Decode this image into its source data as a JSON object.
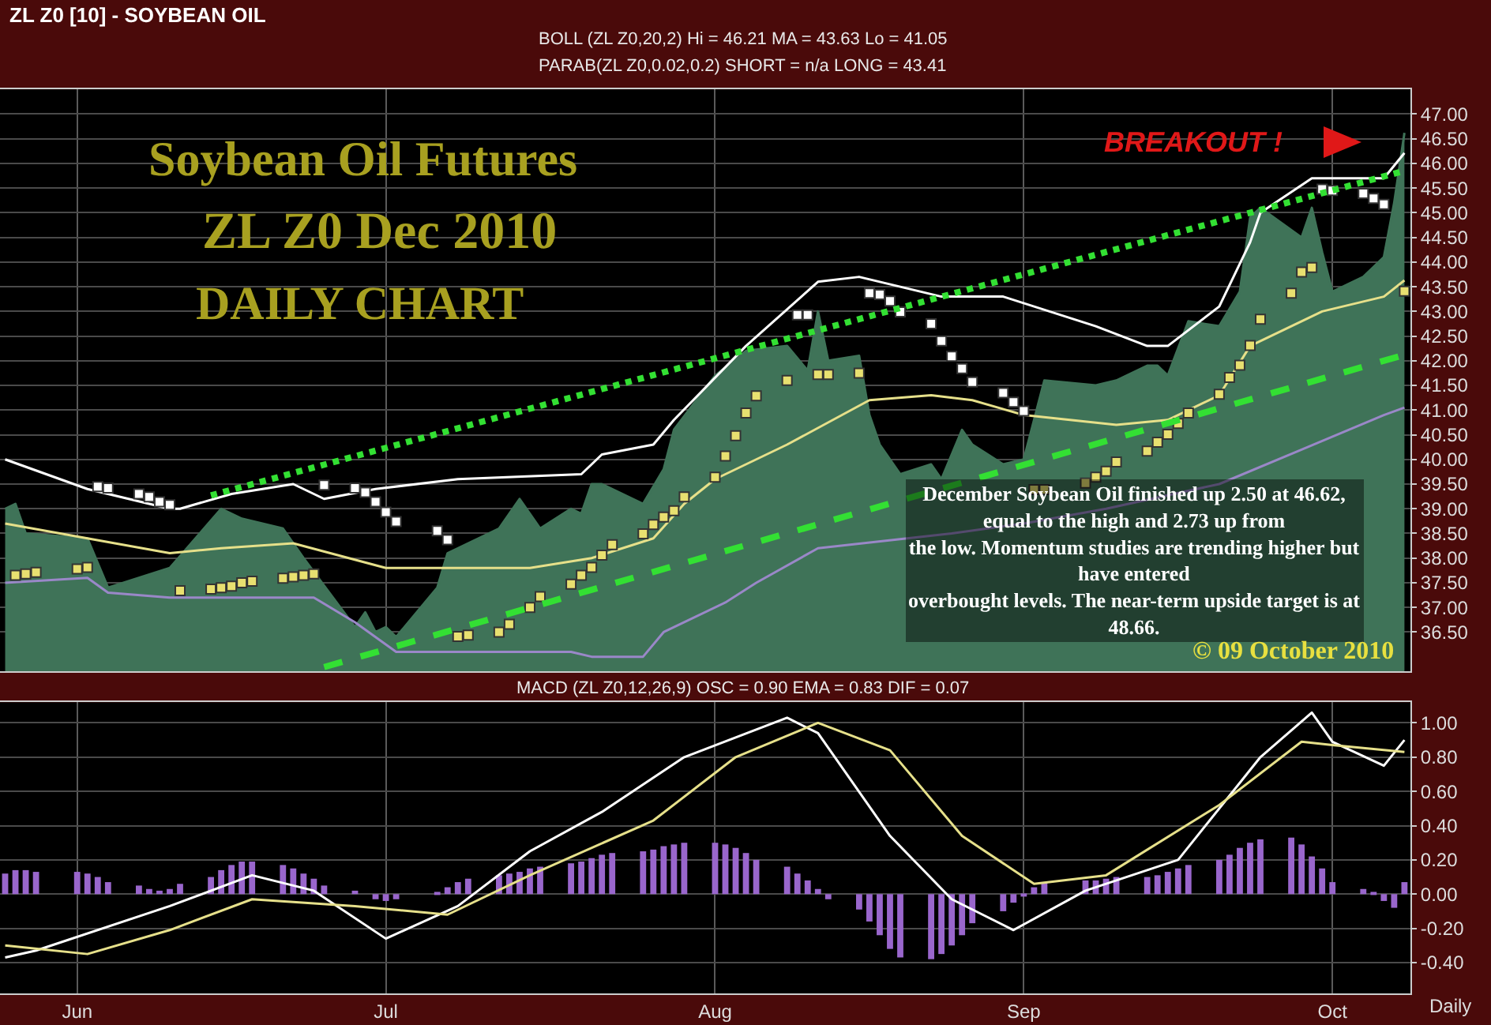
{
  "chart_data": [
    {
      "type": "area",
      "title": "ZL Z0 [10] - SOYBEAN OIL",
      "annotations": [
        "BOLL (ZL Z0,20,2) Hi = 46.21 MA = 43.63 Lo = 41.05",
        "PARAB(ZL Z0,0.02,0.2) SHORT = n/a LONG = 43.41",
        "Soybean Oil Futures",
        "ZL Z0 Dec 2010",
        "DAILY CHART",
        "BREAKOUT !",
        "December Soybean Oil finished up 2.50 at 46.62,\nequal to the high and 2.73 up from\nthe low. Momentum studies are trending higher but\nhave entered\noverbought levels. The near-term upside target is at\n48.66.",
        "© 09 October 2010"
      ],
      "series": [
        {
          "color": "#3f7358",
          "x": [
            "--05-25",
            "--05-26",
            "--05-27",
            "--06-02",
            "--06-04",
            "--06-07",
            "--06-10",
            "--06-15",
            "--06-17",
            "--06-21",
            "--06-23",
            "--06-28",
            "--06-29",
            "--06-30",
            "--07-01",
            "--07-02",
            "--07-06",
            "--07-07",
            "--07-12",
            "--07-14",
            "--07-16",
            "--07-19",
            "--07-20",
            "--07-21",
            "--07-22",
            "--07-26",
            "--07-28",
            "--07-29",
            "--08-02",
            "--08-05",
            "--08-09",
            "--08-11",
            "--08-12",
            "--08-13",
            "--08-16",
            "--08-17",
            "--08-18",
            "--08-20",
            "--08-23",
            "--08-24",
            "--08-26",
            "--08-27",
            "--08-30",
            "--09-01",
            "--09-03",
            "--09-08",
            "--09-10",
            "--09-13",
            "--09-14",
            "--09-15",
            "--09-17",
            "--09-20",
            "--09-22",
            "--09-23",
            "--09-24",
            "--09-28",
            "--09-29",
            "--09-30",
            "--10-01",
            "--10-04",
            "--10-06",
            "--10-07",
            "--10-08"
          ],
          "values": [
            39.0,
            39.1,
            38.5,
            38.4,
            37.4,
            37.6,
            37.8,
            39.0,
            38.8,
            38.6,
            38.0,
            36.6,
            36.9,
            36.5,
            36.6,
            36.4,
            37.4,
            38.1,
            38.6,
            39.2,
            38.6,
            39.0,
            38.9,
            39.5,
            39.5,
            39.1,
            39.8,
            40.6,
            41.7,
            42.2,
            42.3,
            41.8,
            43.0,
            42.0,
            42.1,
            40.9,
            40.3,
            39.7,
            39.9,
            39.6,
            40.6,
            40.3,
            39.9,
            40.0,
            41.6,
            41.5,
            41.6,
            41.9,
            41.9,
            41.7,
            42.8,
            42.7,
            43.4,
            44.9,
            45.1,
            44.5,
            45.1,
            44.2,
            43.4,
            43.7,
            44.1,
            45.2,
            46.62
          ]
        },
        {
          "type": "line",
          "color": "#ffffff",
          "x": [
            "--05-25",
            "--06-02",
            "--06-10",
            "--06-11",
            "--06-16",
            "--06-22",
            "--06-25",
            "--06-30",
            "--07-08",
            "--07-20",
            "--07-22",
            "--07-27",
            "--07-29",
            "--08-05",
            "--08-12",
            "--08-16",
            "--08-24",
            "--08-30",
            "--09-08",
            "--09-13",
            "--09-15",
            "--09-20",
            "--09-23",
            "--09-24",
            "--09-29",
            "--10-06",
            "--10-08"
          ],
          "values": [
            40.0,
            39.4,
            39.0,
            39.0,
            39.3,
            39.5,
            39.2,
            39.4,
            39.6,
            39.7,
            40.1,
            40.3,
            40.8,
            42.3,
            43.6,
            43.7,
            43.3,
            43.3,
            42.7,
            42.3,
            42.3,
            43.1,
            44.4,
            45.0,
            45.7,
            45.7,
            46.21
          ]
        },
        {
          "type": "line",
          "color": "#e6e08a",
          "x": [
            "--05-25",
            "--06-02",
            "--06-10",
            "--06-15",
            "--06-22",
            "--07-01",
            "--07-15",
            "--07-21",
            "--07-27",
            "--07-30",
            "--08-02",
            "--08-09",
            "--08-17",
            "--08-23",
            "--08-27",
            "--09-01",
            "--09-10",
            "--09-15",
            "--09-20",
            "--09-23",
            "--09-30",
            "--10-06",
            "--10-08"
          ],
          "values": [
            38.7,
            38.4,
            38.1,
            38.2,
            38.3,
            37.8,
            37.8,
            38.0,
            38.4,
            39.1,
            39.6,
            40.3,
            41.2,
            41.3,
            41.2,
            40.9,
            40.7,
            40.8,
            41.3,
            42.3,
            43.0,
            43.3,
            43.63
          ]
        },
        {
          "type": "line",
          "color": "#9a88c8",
          "x": [
            "--05-25",
            "--06-02",
            "--06-04",
            "--06-10",
            "--06-24",
            "--06-28",
            "--06-30",
            "--07-02",
            "--07-19",
            "--07-21",
            "--07-26",
            "--07-28",
            "--08-03",
            "--08-06",
            "--08-12",
            "--08-25",
            "--09-01",
            "--09-09",
            "--09-20",
            "--09-28",
            "--10-06",
            "--10-08"
          ],
          "values": [
            37.5,
            37.6,
            37.3,
            37.2,
            37.2,
            36.7,
            36.4,
            36.1,
            36.1,
            36.0,
            36.0,
            36.5,
            37.1,
            37.5,
            38.2,
            38.5,
            38.7,
            39.0,
            39.5,
            40.2,
            40.9,
            41.05
          ]
        },
        {
          "type": "scatter",
          "marker": "square",
          "x": [
            "--05-26",
            "--05-27",
            "--05-28",
            "--06-01",
            "--06-02",
            "--06-03",
            "--06-04",
            "--06-07",
            "--06-08",
            "--06-09",
            "--06-10",
            "--06-11",
            "--06-14",
            "--06-15",
            "--06-16",
            "--06-17",
            "--06-18",
            "--06-21",
            "--06-22",
            "--06-23",
            "--06-24",
            "--06-25",
            "--06-28",
            "--06-29",
            "--06-30",
            "--07-01",
            "--07-02",
            "--07-06",
            "--07-07",
            "--07-08",
            "--07-09",
            "--07-12",
            "--07-13",
            "--07-15",
            "--07-16",
            "--07-19",
            "--07-20",
            "--07-21",
            "--07-22",
            "--07-23",
            "--07-26",
            "--07-27",
            "--07-28",
            "--07-29",
            "--07-30",
            "--08-02",
            "--08-03",
            "--08-04",
            "--08-05",
            "--08-06",
            "--08-09",
            "--08-10",
            "--08-11",
            "--08-12",
            "--08-13",
            "--08-16",
            "--08-17",
            "--08-18",
            "--08-19",
            "--08-20",
            "--08-23",
            "--08-24",
            "--08-25",
            "--08-26",
            "--08-27",
            "--08-30",
            "--08-31",
            "--09-01",
            "--09-02",
            "--09-03",
            "--09-07",
            "--09-08",
            "--09-09",
            "--09-10",
            "--09-13",
            "--09-14",
            "--09-15",
            "--09-16",
            "--09-17",
            "--09-20",
            "--09-21",
            "--09-22",
            "--09-23",
            "--09-24",
            "--09-27",
            "--09-28",
            "--09-29",
            "--09-30",
            "--10-01",
            "--10-04",
            "--10-05",
            "--10-06",
            "--10-08"
          ],
          "values": [
            37.65,
            37.68,
            37.71,
            37.78,
            37.81,
            39.45,
            39.42,
            39.3,
            39.24,
            39.14,
            39.08,
            37.34,
            37.37,
            37.4,
            37.43,
            37.5,
            37.53,
            37.59,
            37.62,
            37.65,
            37.68,
            39.48,
            39.42,
            39.33,
            39.14,
            38.93,
            38.74,
            38.55,
            38.37,
            36.41,
            36.44,
            36.5,
            36.66,
            37.0,
            37.22,
            37.47,
            37.65,
            37.81,
            38.06,
            38.27,
            38.49,
            38.68,
            38.83,
            38.96,
            39.24,
            39.64,
            40.07,
            40.48,
            40.94,
            41.29,
            41.6,
            42.93,
            42.93,
            41.72,
            41.72,
            41.75,
            43.37,
            43.34,
            43.21,
            42.99,
            42.75,
            42.4,
            42.09,
            41.84,
            41.57,
            41.35,
            41.16,
            40.98,
            39.39,
            39.39,
            39.52,
            39.64,
            39.76,
            39.95,
            40.17,
            40.35,
            40.51,
            40.73,
            40.94,
            41.32,
            41.66,
            41.91,
            42.31,
            42.84,
            43.37,
            43.8,
            43.89,
            45.48,
            45.45,
            45.39,
            45.29,
            45.17,
            43.41
          ],
          "colors": [
            "#e8e070",
            "#e8e070",
            "#e8e070",
            "#e8e070",
            "#e8e070",
            "#ffffff",
            "#ffffff",
            "#ffffff",
            "#ffffff",
            "#ffffff",
            "#ffffff",
            "#e8e070",
            "#e8e070",
            "#e8e070",
            "#e8e070",
            "#e8e070",
            "#e8e070",
            "#e8e070",
            "#e8e070",
            "#e8e070",
            "#e8e070",
            "#ffffff",
            "#ffffff",
            "#ffffff",
            "#ffffff",
            "#ffffff",
            "#ffffff",
            "#ffffff",
            "#ffffff",
            "#e8e070",
            "#e8e070",
            "#e8e070",
            "#e8e070",
            "#e8e070",
            "#e8e070",
            "#e8e070",
            "#e8e070",
            "#e8e070",
            "#e8e070",
            "#e8e070",
            "#e8e070",
            "#e8e070",
            "#e8e070",
            "#e8e070",
            "#e8e070",
            "#e8e070",
            "#e8e070",
            "#e8e070",
            "#e8e070",
            "#e8e070",
            "#e8e070",
            "#ffffff",
            "#ffffff",
            "#e8e070",
            "#e8e070",
            "#e8e070",
            "#ffffff",
            "#ffffff",
            "#ffffff",
            "#ffffff",
            "#ffffff",
            "#ffffff",
            "#ffffff",
            "#ffffff",
            "#ffffff",
            "#ffffff",
            "#ffffff",
            "#ffffff",
            "#e8e070",
            "#e8e070",
            "#e8e070",
            "#e8e070",
            "#e8e070",
            "#e8e070",
            "#e8e070",
            "#e8e070",
            "#e8e070",
            "#e8e070",
            "#e8e070",
            "#e8e070",
            "#e8e070",
            "#e8e070",
            "#e8e070",
            "#e8e070",
            "#e8e070",
            "#e8e070",
            "#e8e070",
            "#ffffff",
            "#ffffff",
            "#ffffff",
            "#ffffff",
            "#ffffff",
            "#e8e070"
          ]
        },
        {
          "type": "line",
          "color": "#33e033",
          "line_style": "dotted",
          "x": [
            "--06-14",
            "--10-08"
          ],
          "values": [
            39.27,
            45.85
          ]
        },
        {
          "type": "line",
          "color": "#33e033",
          "line_style": "dashed",
          "x": [
            "--06-25",
            "--10-08"
          ],
          "values": [
            35.79,
            42.12
          ]
        }
      ],
      "xlim": [
        "--05-24T12:00",
        "--10-08T14:00"
      ],
      "xticks": [
        {
          "value": "--06-01",
          "label": "Jun"
        },
        {
          "value": "--07-01",
          "label": "Jul"
        },
        {
          "value": "--08-02",
          "label": "Aug"
        },
        {
          "value": "--09-01",
          "label": "Sep"
        },
        {
          "value": "--10-01",
          "label": "Oct"
        }
      ],
      "ylim": [
        35.7,
        47.5
      ],
      "yticks": [
        {
          "value": 36.5,
          "label": "36.50"
        },
        {
          "value": 37,
          "label": "37.00"
        },
        {
          "value": 37.5,
          "label": "37.50"
        },
        {
          "value": 38,
          "label": "38.00"
        },
        {
          "value": 38.5,
          "label": "38.50"
        },
        {
          "value": 39,
          "label": "39.00"
        },
        {
          "value": 39.5,
          "label": "39.50"
        },
        {
          "value": 40,
          "label": "40.00"
        },
        {
          "value": 40.5,
          "label": "40.50"
        },
        {
          "value": 41,
          "label": "41.00"
        },
        {
          "value": 41.5,
          "label": "41.50"
        },
        {
          "value": 42,
          "label": "42.00"
        },
        {
          "value": 42.5,
          "label": "42.50"
        },
        {
          "value": 43,
          "label": "43.00"
        },
        {
          "value": 43.5,
          "label": "43.50"
        },
        {
          "value": 44,
          "label": "44.00"
        },
        {
          "value": 44.5,
          "label": "44.50"
        },
        {
          "value": 45,
          "label": "45.00"
        },
        {
          "value": 45.5,
          "label": "45.50"
        },
        {
          "value": 46,
          "label": "46.00"
        },
        {
          "value": 46.5,
          "label": "46.50"
        },
        {
          "value": 47,
          "label": "47.00"
        }
      ],
      "grid": true,
      "tick_labels": "y"
    },
    {
      "type": "bar",
      "annotations": [
        "MACD (ZL Z0,12,26,9) OSC = 0.90 EMA = 0.83 DIF = 0.07",
        "Daily"
      ],
      "series": [
        {
          "color": "#9966cc",
          "x": [
            "--05-25",
            "--05-26",
            "--05-27",
            "--05-28",
            "--06-01",
            "--06-02",
            "--06-03",
            "--06-04",
            "--06-07",
            "--06-08",
            "--06-09",
            "--06-10",
            "--06-11",
            "--06-14",
            "--06-15",
            "--06-16",
            "--06-17",
            "--06-18",
            "--06-21",
            "--06-22",
            "--06-23",
            "--06-24",
            "--06-25",
            "--06-28",
            "--06-29",
            "--06-30",
            "--07-01",
            "--07-02",
            "--07-06",
            "--07-07",
            "--07-08",
            "--07-09",
            "--07-12",
            "--07-13",
            "--07-14",
            "--07-15",
            "--07-16",
            "--07-19",
            "--07-20",
            "--07-21",
            "--07-22",
            "--07-23",
            "--07-26",
            "--07-27",
            "--07-28",
            "--07-29",
            "--07-30",
            "--08-02",
            "--08-03",
            "--08-04",
            "--08-05",
            "--08-06",
            "--08-09",
            "--08-10",
            "--08-11",
            "--08-12",
            "--08-13",
            "--08-16",
            "--08-17",
            "--08-18",
            "--08-19",
            "--08-20",
            "--08-23",
            "--08-24",
            "--08-25",
            "--08-26",
            "--08-27",
            "--08-30",
            "--08-31",
            "--09-01",
            "--09-02",
            "--09-03",
            "--09-07",
            "--09-08",
            "--09-09",
            "--09-10",
            "--09-13",
            "--09-14",
            "--09-15",
            "--09-16",
            "--09-17",
            "--09-20",
            "--09-21",
            "--09-22",
            "--09-23",
            "--09-24",
            "--09-27",
            "--09-28",
            "--09-29",
            "--09-30",
            "--10-01",
            "--10-04",
            "--10-05",
            "--10-06",
            "--10-07",
            "--10-08"
          ],
          "values": [
            0.12,
            0.14,
            0.14,
            0.13,
            0.13,
            0.12,
            0.1,
            0.07,
            0.05,
            0.03,
            0.02,
            0.03,
            0.06,
            0.1,
            0.14,
            0.17,
            0.19,
            0.19,
            0.17,
            0.15,
            0.12,
            0.09,
            0.05,
            0.02,
            0.0,
            -0.03,
            -0.04,
            -0.03,
            0.01,
            0.04,
            0.07,
            0.09,
            0.11,
            0.12,
            0.13,
            0.15,
            0.16,
            0.18,
            0.19,
            0.21,
            0.23,
            0.24,
            0.25,
            0.26,
            0.28,
            0.29,
            0.3,
            0.3,
            0.29,
            0.27,
            0.24,
            0.2,
            0.16,
            0.12,
            0.08,
            0.03,
            -0.03,
            -0.09,
            -0.16,
            -0.24,
            -0.32,
            -0.37,
            -0.38,
            -0.35,
            -0.3,
            -0.24,
            -0.17,
            -0.1,
            -0.05,
            -0.01,
            0.04,
            0.07,
            0.08,
            0.08,
            0.09,
            0.1,
            0.1,
            0.11,
            0.13,
            0.15,
            0.17,
            0.2,
            0.23,
            0.27,
            0.3,
            0.32,
            0.33,
            0.29,
            0.22,
            0.15,
            0.07,
            0.03,
            0.01,
            -0.04,
            -0.08,
            0.07
          ]
        },
        {
          "type": "line",
          "color": "#ffffff",
          "x": [
            "--05-25",
            "--05-28",
            "--06-10",
            "--06-18",
            "--06-24",
            "--07-01",
            "--07-08",
            "--07-15",
            "--07-22",
            "--07-30",
            "--08-09",
            "--08-12",
            "--08-19",
            "--08-25",
            "--08-31",
            "--09-07",
            "--09-16",
            "--09-24",
            "--09-29",
            "--10-01",
            "--10-06",
            "--10-08"
          ],
          "values": [
            -0.37,
            -0.33,
            -0.07,
            0.11,
            0.02,
            -0.26,
            -0.07,
            0.25,
            0.48,
            0.8,
            1.03,
            0.94,
            0.34,
            -0.03,
            -0.21,
            0.02,
            0.2,
            0.8,
            1.06,
            0.89,
            0.75,
            0.9
          ]
        },
        {
          "type": "line",
          "color": "#e6e08a",
          "x": [
            "--05-25",
            "--06-02",
            "--06-10",
            "--06-18",
            "--06-28",
            "--07-07",
            "--07-15",
            "--07-27",
            "--08-04",
            "--08-12",
            "--08-19",
            "--08-26",
            "--09-02",
            "--09-09",
            "--09-20",
            "--09-28",
            "--10-01",
            "--10-08"
          ],
          "values": [
            -0.3,
            -0.35,
            -0.21,
            -0.03,
            -0.07,
            -0.12,
            0.11,
            0.43,
            0.8,
            1.0,
            0.84,
            0.34,
            0.06,
            0.11,
            0.52,
            0.89,
            0.87,
            0.83
          ]
        }
      ],
      "xlim": [
        "--05-24T12:00",
        "--10-08T14:00"
      ],
      "xticks": [
        {
          "value": "--06-01",
          "label": "Jun"
        },
        {
          "value": "--07-01",
          "label": "Jul"
        },
        {
          "value": "--08-02",
          "label": "Aug"
        },
        {
          "value": "--09-01",
          "label": "Sep"
        },
        {
          "value": "--10-01",
          "label": "Oct"
        }
      ],
      "ylim": [
        -0.58,
        1.12
      ],
      "yticks": [
        {
          "value": -0.4,
          "label": "-0.40"
        },
        {
          "value": -0.2,
          "label": "-0.20"
        },
        {
          "value": 0,
          "label": "0.00"
        },
        {
          "value": 0.2,
          "label": "0.20"
        },
        {
          "value": 0.4,
          "label": "0.40"
        },
        {
          "value": 0.6,
          "label": "0.60"
        },
        {
          "value": 0.8,
          "label": "0.80"
        },
        {
          "value": 1,
          "label": "1.00"
        }
      ],
      "grid": true
    }
  ]
}
